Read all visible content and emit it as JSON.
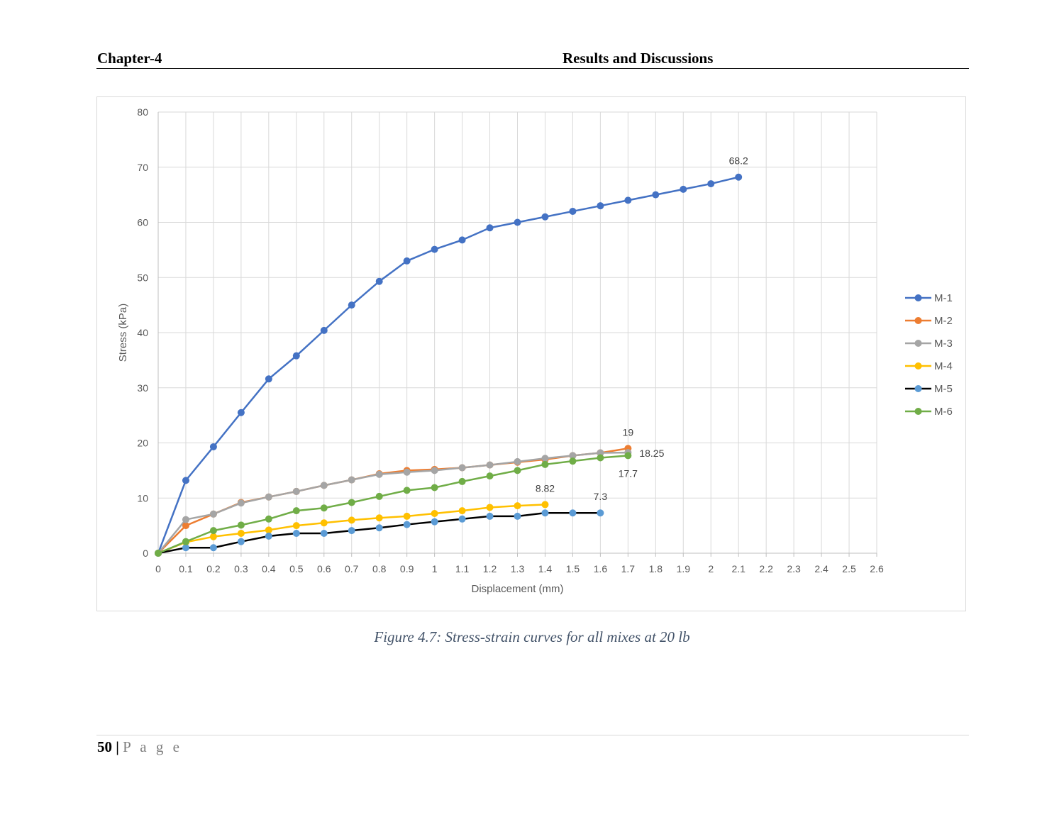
{
  "header": {
    "chapter": "Chapter-4",
    "section": "Results and Discussions"
  },
  "caption": "Figure 4.7: Stress-strain curves for all mixes at 20 lb",
  "footer": {
    "page_number": "50",
    "separator": "|",
    "page_word": "P a g e"
  },
  "chart_data": {
    "type": "line",
    "xlabel": "Displacement (mm)",
    "ylabel": "Stress (kPa)",
    "xlim": [
      0,
      2.6
    ],
    "ylim": [
      0,
      80
    ],
    "x_ticks": [
      "0",
      "0.1",
      "0.2",
      "0.3",
      "0.4",
      "0.5",
      "0.6",
      "0.7",
      "0.8",
      "0.9",
      "1",
      "1.1",
      "1.2",
      "1.3",
      "1.4",
      "1.5",
      "1.6",
      "1.7",
      "1.8",
      "1.9",
      "2",
      "2.1",
      "2.2",
      "2.3",
      "2.4",
      "2.5",
      "2.6"
    ],
    "y_ticks": [
      "0",
      "10",
      "20",
      "30",
      "40",
      "50",
      "60",
      "70",
      "80"
    ],
    "grid": true,
    "legend_position": "right",
    "series": [
      {
        "name": "M-1",
        "color": "#4472c4",
        "marker": "#4472c4",
        "x": [
          0,
          0.1,
          0.2,
          0.3,
          0.4,
          0.5,
          0.6,
          0.7,
          0.8,
          0.9,
          1,
          1.1,
          1.2,
          1.3,
          1.4,
          1.5,
          1.6,
          1.7,
          1.8,
          1.9,
          2,
          2.1
        ],
        "y": [
          0,
          13.2,
          19.3,
          25.5,
          31.6,
          35.8,
          40.4,
          45,
          49.3,
          53,
          55.1,
          56.8,
          59,
          60,
          61,
          62,
          63,
          64,
          65,
          66,
          67,
          68.2
        ],
        "end_label": "68.2"
      },
      {
        "name": "M-2",
        "color": "#ed7d31",
        "marker": "#ed7d31",
        "x": [
          0,
          0.1,
          0.2,
          0.3,
          0.4,
          0.5,
          0.6,
          0.7,
          0.8,
          0.9,
          1,
          1.1,
          1.2,
          1.3,
          1.4,
          1.5,
          1.6,
          1.7
        ],
        "y": [
          0,
          5,
          7.1,
          9.2,
          10.2,
          11.2,
          12.3,
          13.3,
          14.4,
          15,
          15.2,
          15.5,
          16,
          16.5,
          17,
          17.7,
          18.2,
          19
        ],
        "end_label": "19"
      },
      {
        "name": "M-3",
        "color": "#a5a5a5",
        "marker": "#a5a5a5",
        "x": [
          0,
          0.1,
          0.2,
          0.3,
          0.4,
          0.5,
          0.6,
          0.7,
          0.8,
          0.9,
          1,
          1.1,
          1.2,
          1.3,
          1.4,
          1.5,
          1.6,
          1.7
        ],
        "y": [
          0,
          6.1,
          7.1,
          9.1,
          10.2,
          11.2,
          12.3,
          13.3,
          14.3,
          14.7,
          15,
          15.5,
          16,
          16.6,
          17.2,
          17.7,
          18.2,
          18.25
        ],
        "end_label": "18.25"
      },
      {
        "name": "M-4",
        "color": "#ffc000",
        "marker": "#ffc000",
        "x": [
          0,
          0.1,
          0.2,
          0.3,
          0.4,
          0.5,
          0.6,
          0.7,
          0.8,
          0.9,
          1,
          1.1,
          1.2,
          1.3,
          1.4
        ],
        "y": [
          0,
          2,
          3,
          3.6,
          4.2,
          5,
          5.5,
          6,
          6.4,
          6.7,
          7.2,
          7.7,
          8.3,
          8.6,
          8.82
        ],
        "end_label": "8.82"
      },
      {
        "name": "M-5",
        "color": "#000000",
        "marker": "#5b9bd5",
        "x": [
          0,
          0.1,
          0.2,
          0.3,
          0.4,
          0.5,
          0.6,
          0.7,
          0.8,
          0.9,
          1,
          1.1,
          1.2,
          1.3,
          1.4,
          1.5,
          1.6
        ],
        "y": [
          0,
          1,
          1,
          2.1,
          3.1,
          3.6,
          3.6,
          4.1,
          4.6,
          5.2,
          5.7,
          6.2,
          6.7,
          6.7,
          7.3,
          7.3,
          7.3
        ],
        "end_label": "7.3"
      },
      {
        "name": "M-6",
        "color": "#70ad47",
        "marker": "#70ad47",
        "x": [
          0,
          0.1,
          0.2,
          0.3,
          0.4,
          0.5,
          0.6,
          0.7,
          0.8,
          0.9,
          1,
          1.1,
          1.2,
          1.3,
          1.4,
          1.5,
          1.6,
          1.7
        ],
        "y": [
          0,
          2.1,
          4.1,
          5.1,
          6.2,
          7.7,
          8.2,
          9.2,
          10.3,
          11.4,
          11.9,
          13,
          14,
          15,
          16.1,
          16.7,
          17.3,
          17.7
        ],
        "end_label": "17.7"
      }
    ]
  }
}
